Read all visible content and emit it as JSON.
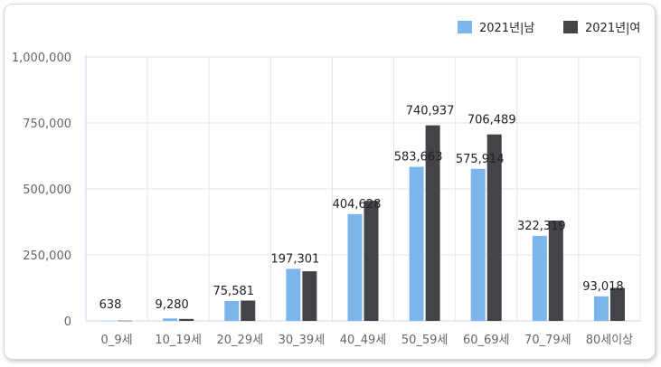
{
  "chart_data": {
    "type": "bar",
    "categories": [
      "0_9세",
      "10_19세",
      "20_29세",
      "30_39세",
      "40_49세",
      "50_59세",
      "60_69세",
      "70_79세",
      "80세이상"
    ],
    "series": [
      {
        "name": "2021년|남",
        "color": "#7cb5ec",
        "values": [
          638,
          9280,
          75581,
          197301,
          404628,
          583663,
          575914,
          322319,
          93018
        ]
      },
      {
        "name": "2021년|여",
        "color": "#434348",
        "values": [
          700,
          7500,
          77000,
          188000,
          455000,
          740937,
          706489,
          380000,
          125000
        ]
      }
    ],
    "data_labels": [
      "638",
      "9,280",
      "75,581",
      "197,301",
      "404,628",
      "583,663",
      "575,914",
      "322,319",
      "93,018"
    ],
    "extra_labels": [
      {
        "category": "50_59세",
        "text": "740,937"
      },
      {
        "category": "60_69세",
        "text": "706,489"
      }
    ],
    "yticks": [
      "0",
      "250,000",
      "500,000",
      "750,000",
      "1,000,000"
    ],
    "ytick_values": [
      0,
      250000,
      500000,
      750000,
      1000000
    ],
    "ylim": [
      0,
      1000000
    ],
    "grid": true,
    "legend_position": "top-right"
  }
}
